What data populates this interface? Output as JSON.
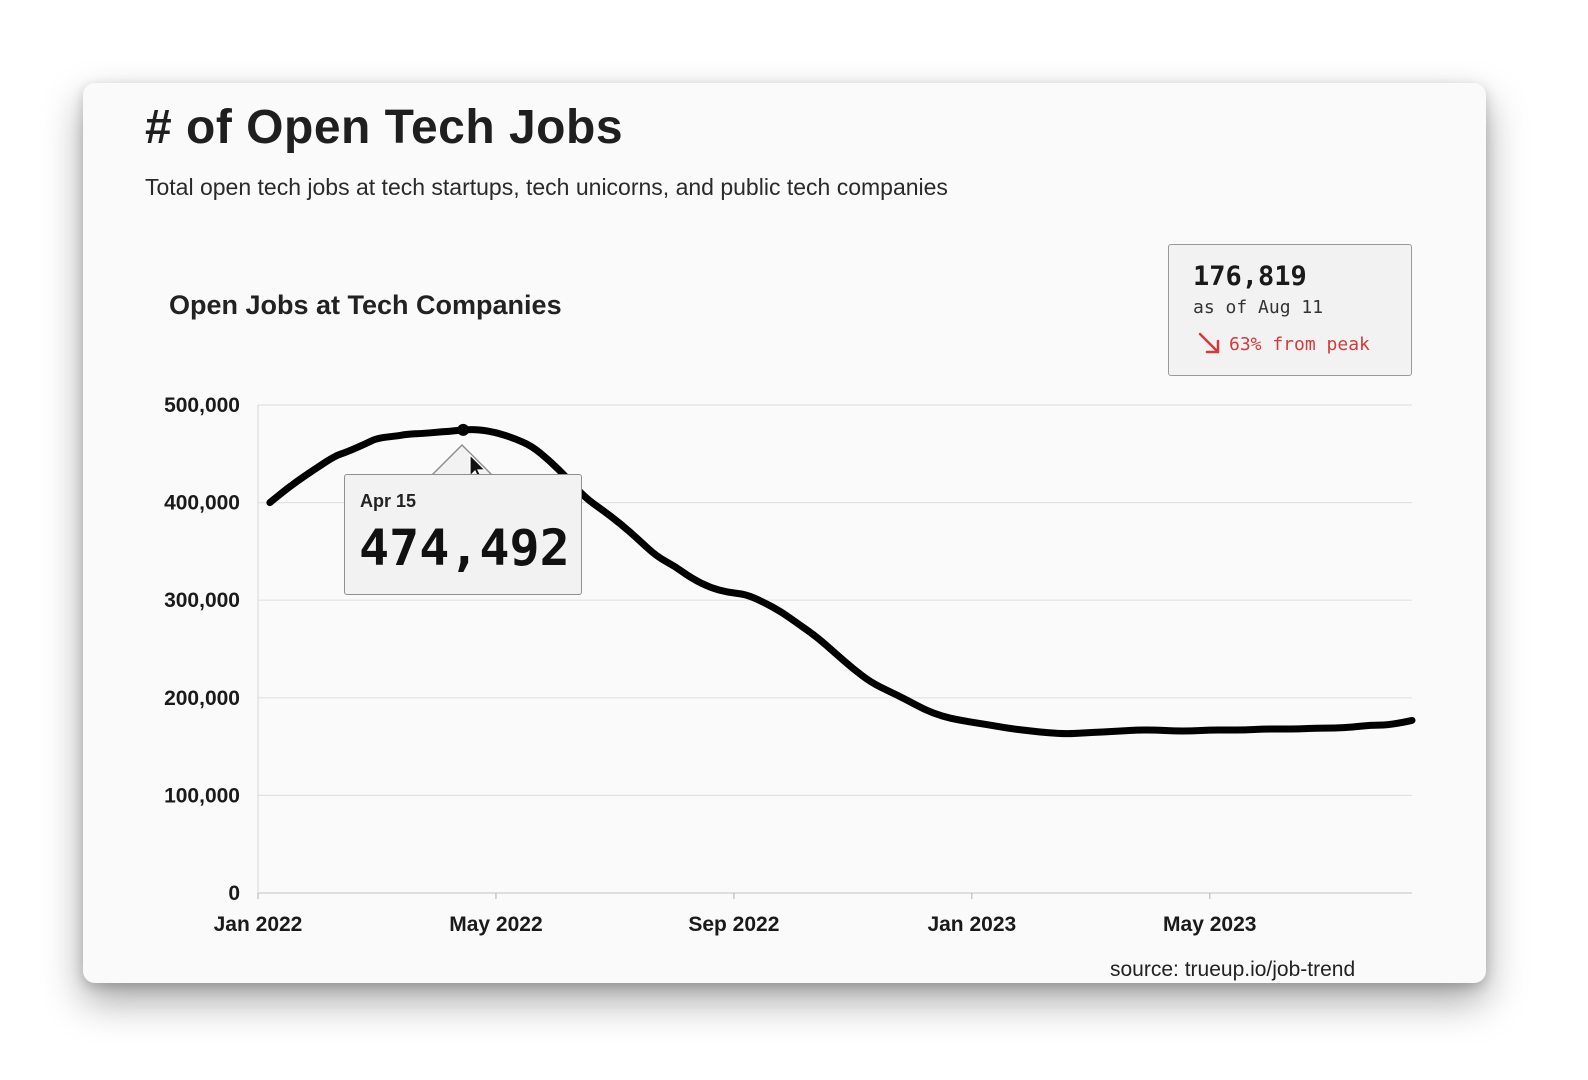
{
  "header": {
    "title": "# of Open Tech Jobs",
    "subtitle": "Total open tech jobs at tech startups, tech unicorns, and public tech companies"
  },
  "summary": {
    "value": "176,819",
    "as_of": "as of Aug 11",
    "change": "63% from peak",
    "change_color": "#d23b3b"
  },
  "tooltip": {
    "date": "Apr 15",
    "value": "474,492"
  },
  "source": "source: trueup.io/job-trend",
  "chart_data": {
    "type": "line",
    "title": "Open Jobs at Tech Companies",
    "xlabel": "",
    "ylabel": "",
    "ylim": [
      0,
      500000
    ],
    "yticks": [
      0,
      100000,
      200000,
      300000,
      400000,
      500000
    ],
    "ytick_labels": [
      "0",
      "100,000",
      "200,000",
      "300,000",
      "400,000",
      "500,000"
    ],
    "xticks": [
      0,
      4,
      8,
      12,
      16
    ],
    "xtick_labels": [
      "Jan 2022",
      "May 2022",
      "Sep 2022",
      "Jan 2023",
      "May 2023"
    ],
    "xlim": [
      0,
      19.4
    ],
    "line_color": "#000000",
    "highlight": {
      "label": "Apr 15",
      "x": 3.45,
      "y": 474492
    },
    "series": [
      {
        "name": "Open Jobs",
        "x": [
          0.2,
          0.5,
          0.8,
          1.0,
          1.3,
          1.5,
          1.8,
          2.0,
          2.3,
          2.5,
          2.8,
          3.0,
          3.2,
          3.45,
          3.7,
          4.0,
          4.3,
          4.6,
          4.9,
          5.2,
          5.5,
          5.8,
          6.1,
          6.4,
          6.7,
          7.0,
          7.3,
          7.6,
          7.9,
          8.2,
          8.5,
          8.8,
          9.1,
          9.4,
          9.7,
          10.0,
          10.3,
          10.6,
          10.9,
          11.2,
          11.5,
          11.8,
          12.1,
          12.4,
          12.7,
          13.0,
          13.3,
          13.6,
          13.9,
          14.2,
          14.5,
          14.8,
          15.1,
          15.4,
          15.7,
          16.0,
          16.3,
          16.6,
          16.9,
          17.2,
          17.5,
          17.8,
          18.1,
          18.4,
          18.7,
          19.0,
          19.4
        ],
        "values": [
          400000,
          415000,
          428000,
          436000,
          448000,
          452000,
          460000,
          466000,
          468000,
          470000,
          471000,
          472000,
          473000,
          474492,
          475000,
          472000,
          466000,
          458000,
          443000,
          425000,
          405000,
          392000,
          378000,
          362000,
          345000,
          335000,
          322000,
          313000,
          308000,
          306000,
          298000,
          288000,
          275000,
          262000,
          246000,
          230000,
          216000,
          207000,
          198000,
          188000,
          181000,
          177000,
          174000,
          171000,
          168000,
          166000,
          164000,
          163000,
          164000,
          165000,
          166000,
          167000,
          167000,
          166000,
          166000,
          167000,
          167000,
          167000,
          168000,
          168000,
          168000,
          169000,
          169000,
          170000,
          172000,
          172000,
          176819
        ]
      }
    ]
  }
}
